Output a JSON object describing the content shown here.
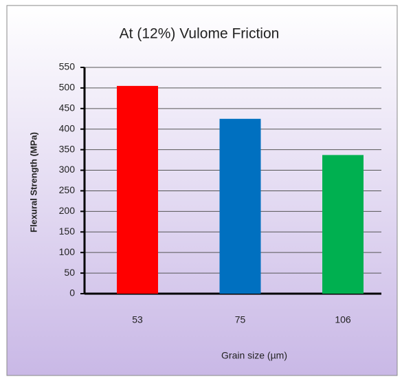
{
  "chart_data": {
    "type": "bar",
    "title": "At (12%) Vulome Friction",
    "x_label": "Grain size (µm)",
    "y_label": "Flexural Strength (MPa)",
    "categories": [
      "53",
      "75",
      "106"
    ],
    "values": [
      505,
      425,
      337
    ],
    "colors": [
      "#ff0000",
      "#0070c0",
      "#00b050"
    ],
    "ylim": [
      0,
      550
    ],
    "yticks": [
      0,
      50,
      100,
      150,
      200,
      250,
      300,
      350,
      400,
      450,
      500,
      550
    ],
    "grid": true
  }
}
